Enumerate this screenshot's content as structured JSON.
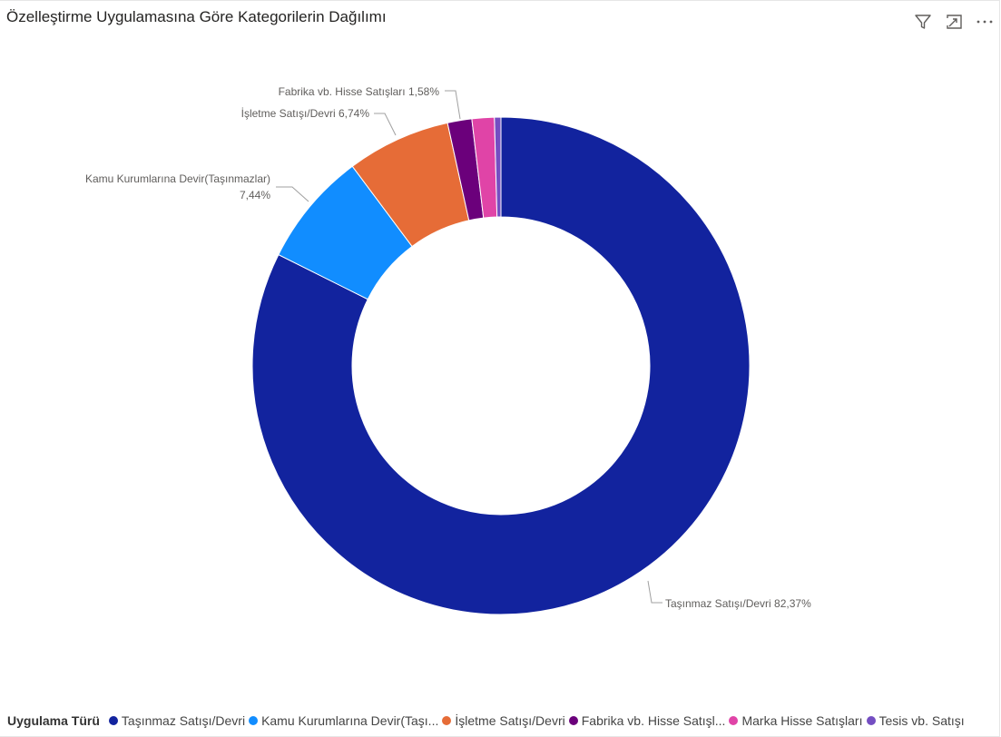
{
  "header": {
    "title": "Özelleştirme Uygulamasına Göre Kategorilerin Dağılımı",
    "icons": [
      "filter-icon",
      "focus-mode-icon",
      "more-options-icon"
    ]
  },
  "chart_data": {
    "type": "pie",
    "variant": "donut",
    "title": "Özelleştirme Uygulamasına Göre Kategorilerin Dağılımı",
    "legend_title": "Uygulama Türü",
    "legend_position": "bottom",
    "slices": [
      {
        "name": "Taşınmaz Satışı/Devri",
        "legend_label": "Taşınmaz Satışı/Devri",
        "value": 82.37,
        "data_label": "Taşınmaz Satışı/Devri 82,37%",
        "color": "#12239E"
      },
      {
        "name": "Kamu Kurumlarına Devir(Taşınmazlar)",
        "legend_label": "Kamu Kurumlarına Devir(Taşı...",
        "value": 7.44,
        "data_label": "Kamu Kurumlarına Devir(Taşınmazlar)",
        "data_label_2": "7,44%",
        "color": "#118DFF"
      },
      {
        "name": "İşletme Satışı/Devri",
        "legend_label": "İşletme Satışı/Devri",
        "value": 6.74,
        "data_label": "İşletme Satışı/Devri 6,74%",
        "color": "#E66C37"
      },
      {
        "name": "Fabrika vb. Hisse Satışları",
        "legend_label": "Fabrika vb. Hisse Satışl...",
        "value": 1.58,
        "data_label": "Fabrika vb. Hisse Satışları 1,58%",
        "color": "#6B007B"
      },
      {
        "name": "Marka Hisse Satışları",
        "legend_label": "Marka Hisse Satışları",
        "value": 1.45,
        "data_label": "",
        "color": "#E044A7"
      },
      {
        "name": "Tesis vb. Satışı",
        "legend_label": "Tesis vb. Satışı",
        "value": 0.42,
        "data_label": "",
        "color": "#744EC2"
      }
    ]
  }
}
